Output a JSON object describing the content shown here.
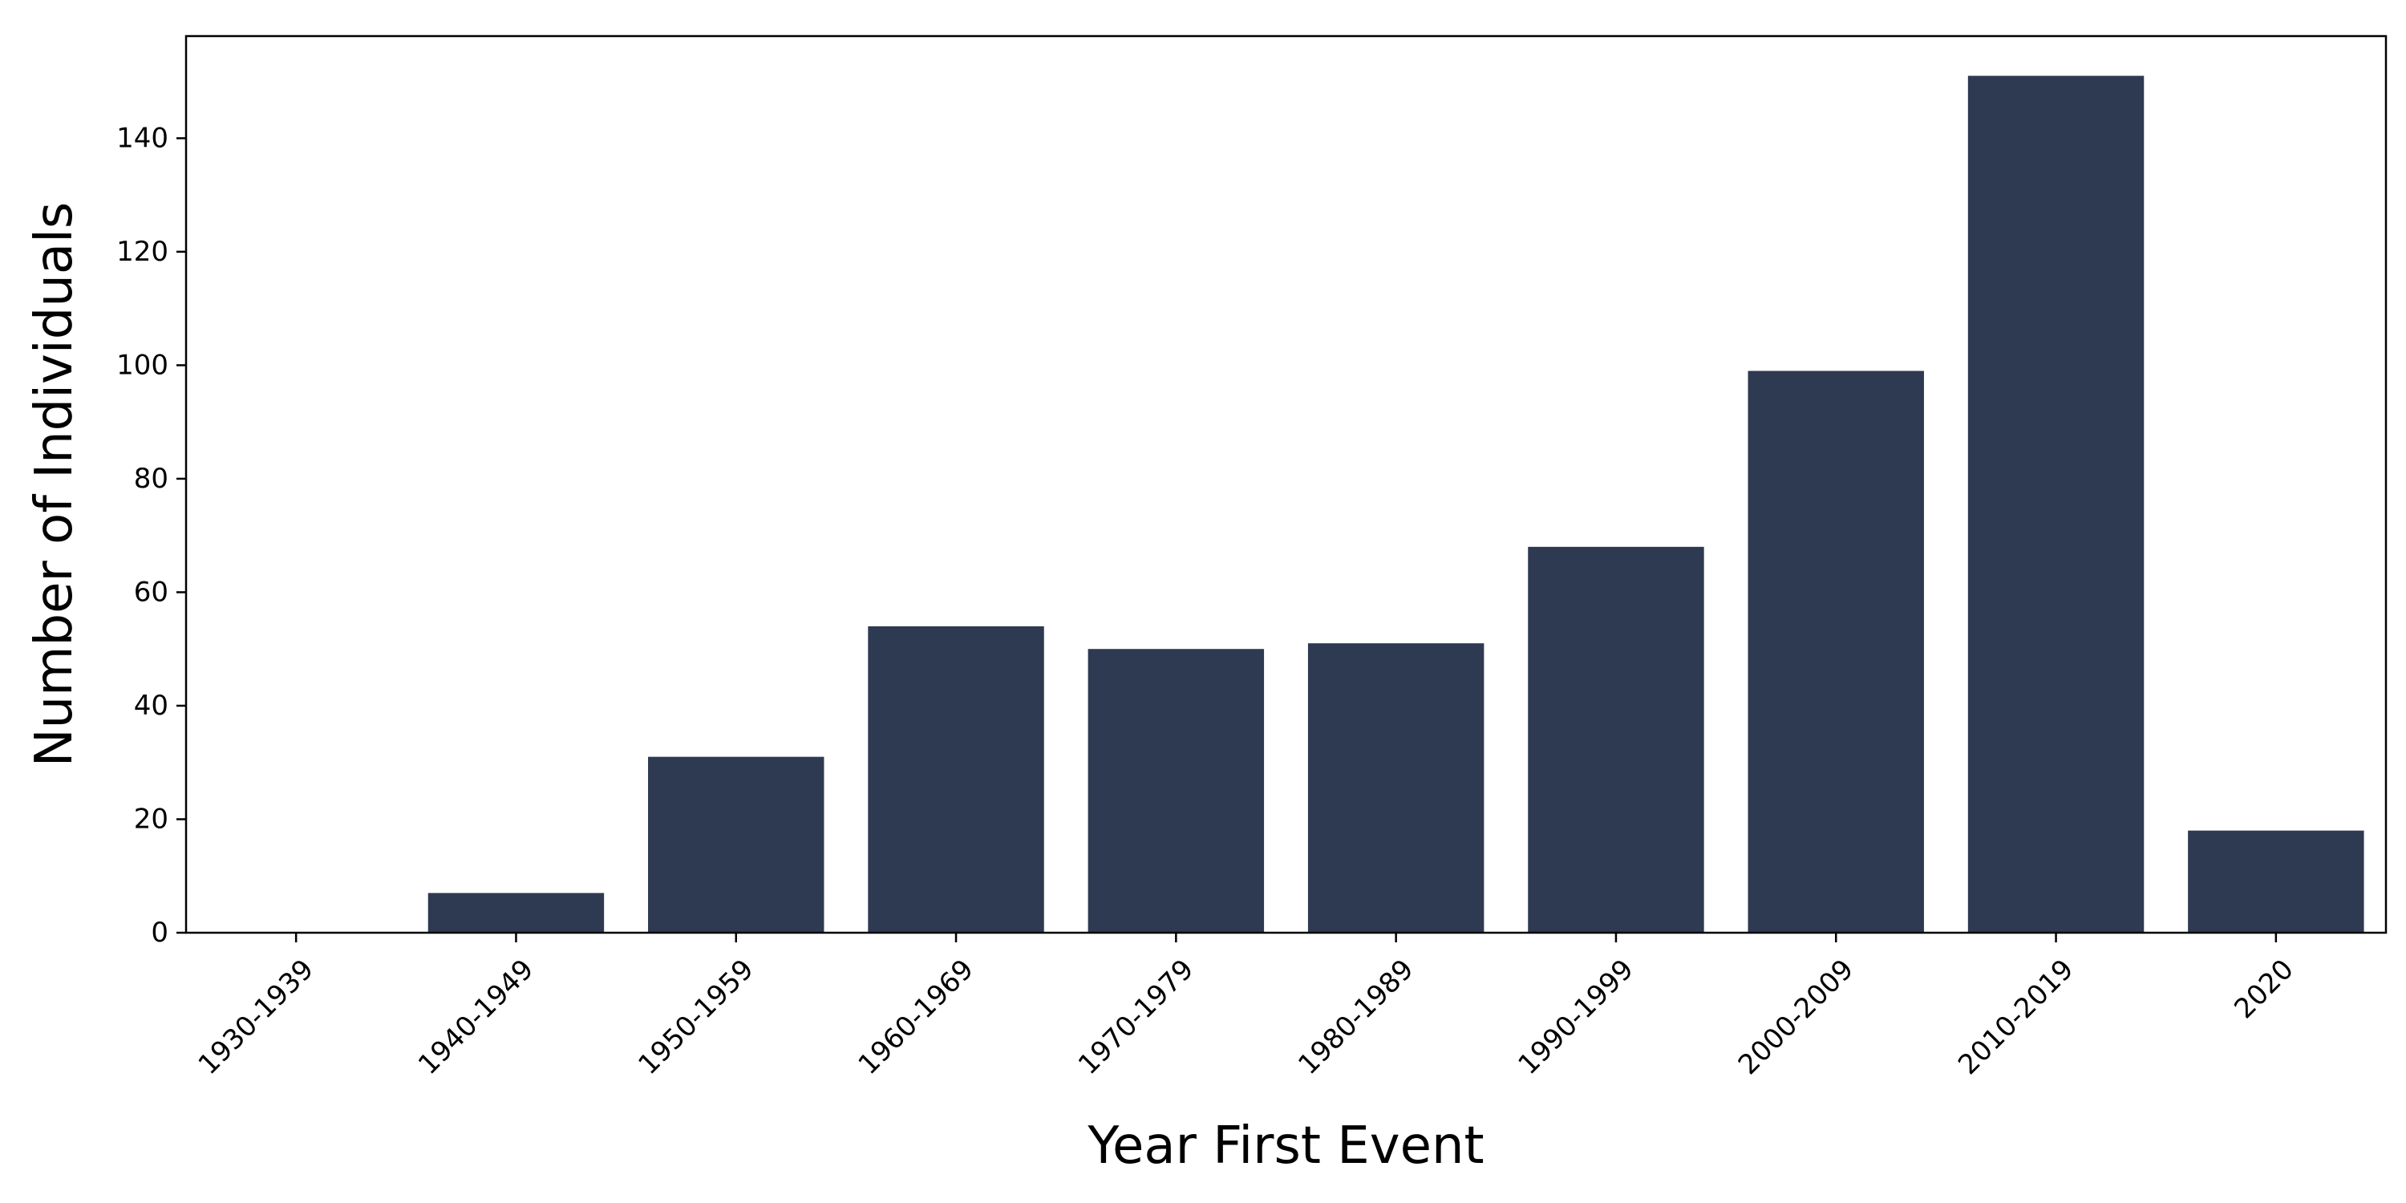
{
  "chart_data": {
    "type": "bar",
    "title": "",
    "xlabel": "Year First Event",
    "ylabel": "Number of Individuals",
    "categories": [
      "1930-1939",
      "1940-1949",
      "1950-1959",
      "1960-1969",
      "1970-1979",
      "1980-1989",
      "1990-1999",
      "2000-2009",
      "2010-2019",
      "2020"
    ],
    "values": [
      0,
      7,
      31,
      54,
      50,
      51,
      68,
      99,
      151,
      18
    ],
    "ylim": [
      0,
      158
    ],
    "yticks": [
      0,
      20,
      40,
      60,
      80,
      100,
      120,
      140
    ],
    "bar_color": "#2e3a51",
    "grid": false,
    "legend": "none"
  }
}
